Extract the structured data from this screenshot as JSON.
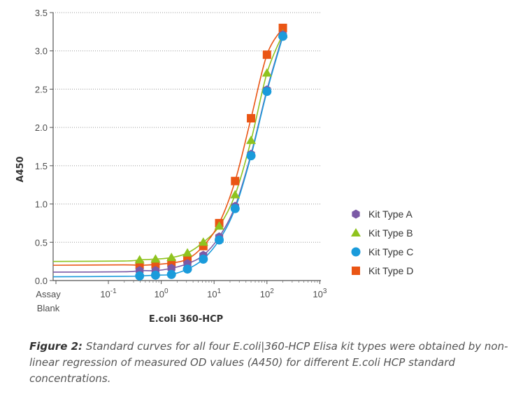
{
  "chart_data": {
    "type": "scatter",
    "xlabel": "E.coli 360-HCP",
    "ylabel": "A450",
    "xscale": "log",
    "ylim": [
      0,
      3.5
    ],
    "yticks": [
      "0.0",
      "0.5",
      "1.0",
      "1.5",
      "2.0",
      "2.5",
      "3.0",
      "3.5"
    ],
    "xticks": [
      {
        "base": "Assay",
        "sup": "",
        "line2": "Blank"
      },
      {
        "base": "10",
        "sup": "-1",
        "line2": ""
      },
      {
        "base": "10",
        "sup": "0",
        "line2": ""
      },
      {
        "base": "10",
        "sup": "1",
        "line2": ""
      },
      {
        "base": "10",
        "sup": "2",
        "line2": ""
      },
      {
        "base": "10",
        "sup": "3",
        "line2": ""
      }
    ],
    "grid": "horizontal-dotted",
    "legend_position": "right",
    "x": [
      0.39,
      0.78,
      1.56,
      3.13,
      6.25,
      12.5,
      25,
      50,
      100,
      200
    ],
    "series": [
      {
        "name": "Kit Type A",
        "color": "#7b5aa6",
        "marker": "hexagon",
        "blank": 0.11,
        "values": [
          0.13,
          0.13,
          0.16,
          0.22,
          0.33,
          0.57,
          0.97,
          1.65,
          2.49,
          3.21
        ]
      },
      {
        "name": "Kit Type B",
        "color": "#8fc31f",
        "marker": "triangle",
        "blank": 0.25,
        "values": [
          0.27,
          0.28,
          0.3,
          0.36,
          0.5,
          0.71,
          1.12,
          1.83,
          2.71,
          3.22
        ]
      },
      {
        "name": "Kit Type C",
        "color": "#1a9bdb",
        "marker": "circle",
        "blank": 0.05,
        "values": [
          0.06,
          0.07,
          0.08,
          0.15,
          0.28,
          0.53,
          0.94,
          1.63,
          2.47,
          3.19
        ]
      },
      {
        "name": "Kit Type D",
        "color": "#ea5514",
        "marker": "square",
        "blank": 0.2,
        "values": [
          0.2,
          0.21,
          0.23,
          0.28,
          0.45,
          0.75,
          1.3,
          2.12,
          2.95,
          3.3
        ]
      }
    ]
  },
  "caption": {
    "label": "Figure 2:",
    "text": " Standard curves for all four E.coli|360-HCP Elisa kit types were obtained by non-linear regression of measured OD values (A450) for different E.coli HCP standard concentrations."
  }
}
